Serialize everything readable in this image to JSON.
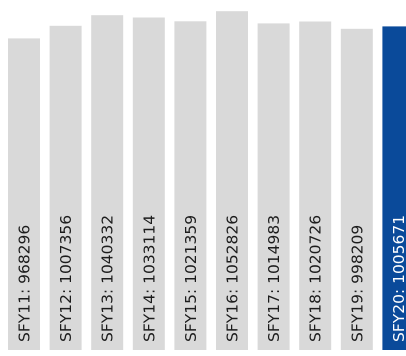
{
  "chart_data": {
    "type": "bar",
    "orientation": "vertical",
    "title": "",
    "xlabel": "",
    "ylabel": "",
    "axes_visible": false,
    "grid": false,
    "legend": "none",
    "ylim": [
      0,
      1100000
    ],
    "categories": [
      "SFY11",
      "SFY12",
      "SFY13",
      "SFY14",
      "SFY15",
      "SFY16",
      "SFY17",
      "SFY18",
      "SFY19",
      "SFY20"
    ],
    "values": [
      968296,
      1007356,
      1040332,
      1033114,
      1021359,
      1052826,
      1014983,
      1020726,
      998209,
      1005671
    ],
    "labels": [
      "SFY11: 968296",
      "SFY12: 1007356",
      "SFY13: 1040332",
      "SFY14: 1033114",
      "SFY15: 1021359",
      "SFY16: 1052826",
      "SFY17: 1014983",
      "SFY18: 1020726",
      "SFY19: 998209",
      "SFY20: 1005671"
    ],
    "highlight_index": 9,
    "colors": {
      "bar": "#d9d9d9",
      "highlight": "#0a4a9a",
      "label": "#1c1c1c",
      "highlight_label": "#ffffff"
    }
  }
}
